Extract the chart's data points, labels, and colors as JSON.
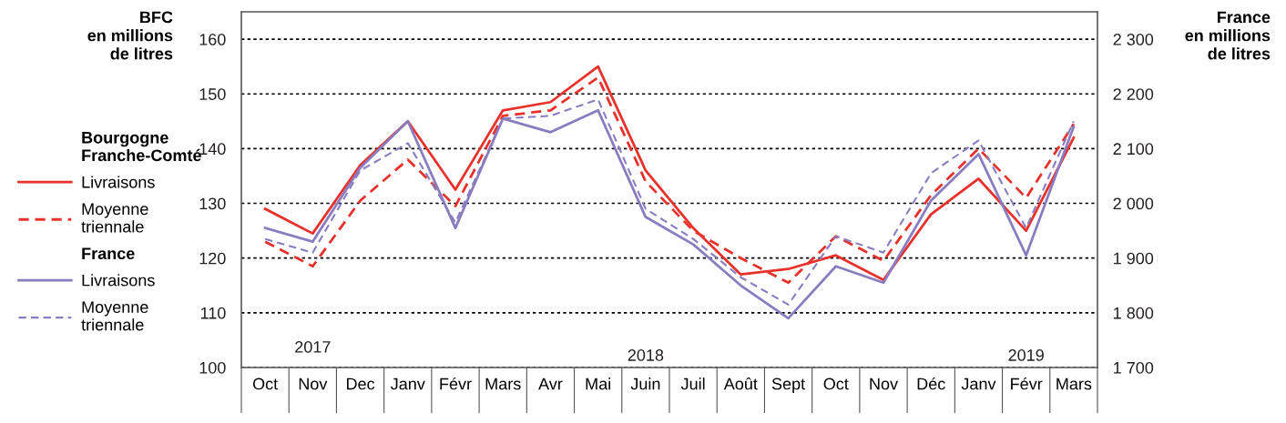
{
  "chart_data": {
    "type": "line",
    "categories": [
      "Oct",
      "Nov",
      "Dec",
      "Janv",
      "Févr",
      "Mars",
      "Avr",
      "Mai",
      "Juin",
      "Juil",
      "Août",
      "Sept",
      "Oct",
      "Nov",
      "Déc",
      "Janv",
      "Févr",
      "Mars"
    ],
    "series": [
      {
        "name": "Livraisons",
        "color": "#e8312a",
        "line_style": "solid",
        "values": [
          129,
          124.5,
          137,
          145,
          132.5,
          147,
          148.5,
          155,
          136,
          125.5,
          117,
          118,
          120.5,
          116,
          128,
          134.5,
          125,
          142
        ]
      },
      {
        "name": "Moyenne triennale",
        "color": "#e8312a",
        "line_style": "dashed",
        "values": [
          123,
          118.5,
          130.5,
          138,
          129.5,
          146,
          147,
          153,
          134,
          125,
          120,
          115.5,
          124,
          119.5,
          131.5,
          140,
          131,
          144.5
        ]
      },
      {
        "name": "Livraisons",
        "axis": "y2",
        "color": "#8a7cc0",
        "line_style": "solid",
        "values": [
          1955,
          1930,
          2065,
          2150,
          1955,
          2155,
          2130,
          2170,
          1975,
          1925,
          1850,
          1790,
          1885,
          1855,
          2005,
          2090,
          1905,
          2140
        ]
      },
      {
        "name": "Moyenne triennale",
        "axis": "y2",
        "color": "#8a7cc0",
        "line_style": "dashed",
        "values": [
          1935,
          1910,
          2060,
          2110,
          1965,
          2155,
          2160,
          2190,
          1990,
          1935,
          1865,
          1815,
          1940,
          1910,
          2055,
          2115,
          1955,
          2150
        ]
      }
    ],
    "ylabel": "BFC\nen millions\nde litres",
    "y2label": "France\nen millions\nde litres",
    "ylim": [
      100,
      165
    ],
    "yticks": [
      100,
      110,
      120,
      130,
      140,
      150,
      160
    ],
    "y2lim": [
      1700,
      2350
    ],
    "y2ticks": [
      {
        "value": 1700,
        "label": "1 700"
      },
      {
        "value": 1800,
        "label": "1 800"
      },
      {
        "value": 1900,
        "label": "1 900"
      },
      {
        "value": 2000,
        "label": "2 000"
      },
      {
        "value": 2100,
        "label": "2 100"
      },
      {
        "value": 2200,
        "label": "2 200"
      },
      {
        "value": 2300,
        "label": "2 300"
      }
    ],
    "annotations": [
      "Bourgogne Franche-Comté",
      "France",
      "2017",
      "2018",
      "2019"
    ],
    "grid": "y",
    "legend": "left",
    "marker": "none"
  }
}
